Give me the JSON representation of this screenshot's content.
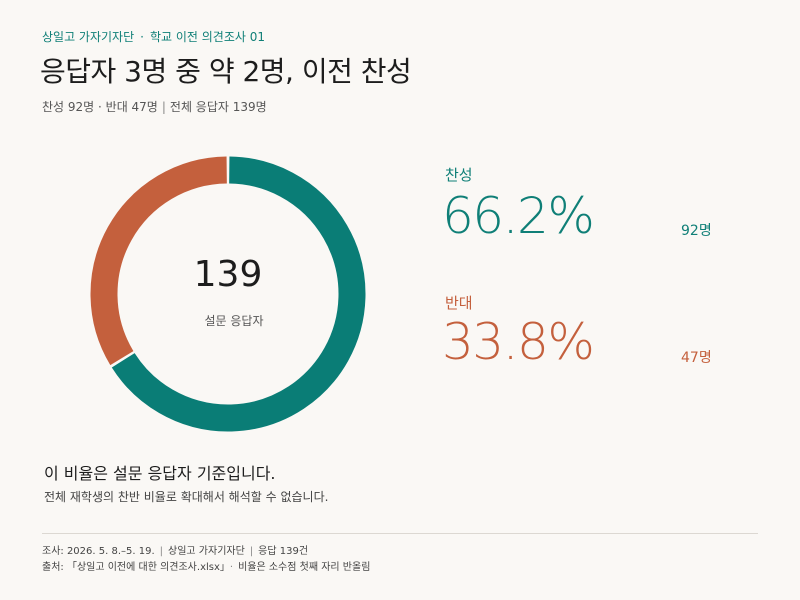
{
  "header": {
    "org": "상일고 가자기자단",
    "kicker_sep": "·",
    "series": "학교 이전 의견조사  01",
    "title": "응답자 3명 중 약 2명, 이전 찬성",
    "subtitle_part1": "찬성 92명 · 반대 47명",
    "subtitle_sep": "|",
    "subtitle_part2": "전체 응답자 139명"
  },
  "donut": {
    "total": "139",
    "caption": "설문 응답자"
  },
  "stats": [
    {
      "label": "찬성",
      "percent": "66.2%",
      "count": "92명"
    },
    {
      "label": "반대",
      "percent": "33.8%",
      "count": "47명"
    }
  ],
  "note": {
    "headline": "이 비율은 설문 응답자 기준입니다.",
    "detail": "전체 재학생의 찬반 비율로 확대해서 해석할 수 없습니다."
  },
  "footer": {
    "line1": [
      "조사: 2026. 5. 8.–5. 19.",
      "상일고 가자기자단",
      "응답 139건"
    ],
    "line1_sep": "|",
    "line2": [
      "출처: 「상일고 이전에 대한 의견조사.xlsx」",
      "비율은 소수점 첫째 자리 반올림"
    ],
    "line2_sep": "·"
  },
  "colors": {
    "agree": "#0a7d76",
    "disagree": "#c4603d",
    "accent_text": "#0f7f77"
  },
  "chart_data": {
    "type": "pie",
    "donut": true,
    "categories": [
      "찬성",
      "반대"
    ],
    "values": [
      92,
      47
    ],
    "percentages": [
      66.2,
      33.8
    ],
    "total": 139,
    "title": "응답자 3명 중 약 2명, 이전 찬성",
    "center_label": "139",
    "center_caption": "설문 응답자",
    "start": "top",
    "direction": "clockwise"
  }
}
